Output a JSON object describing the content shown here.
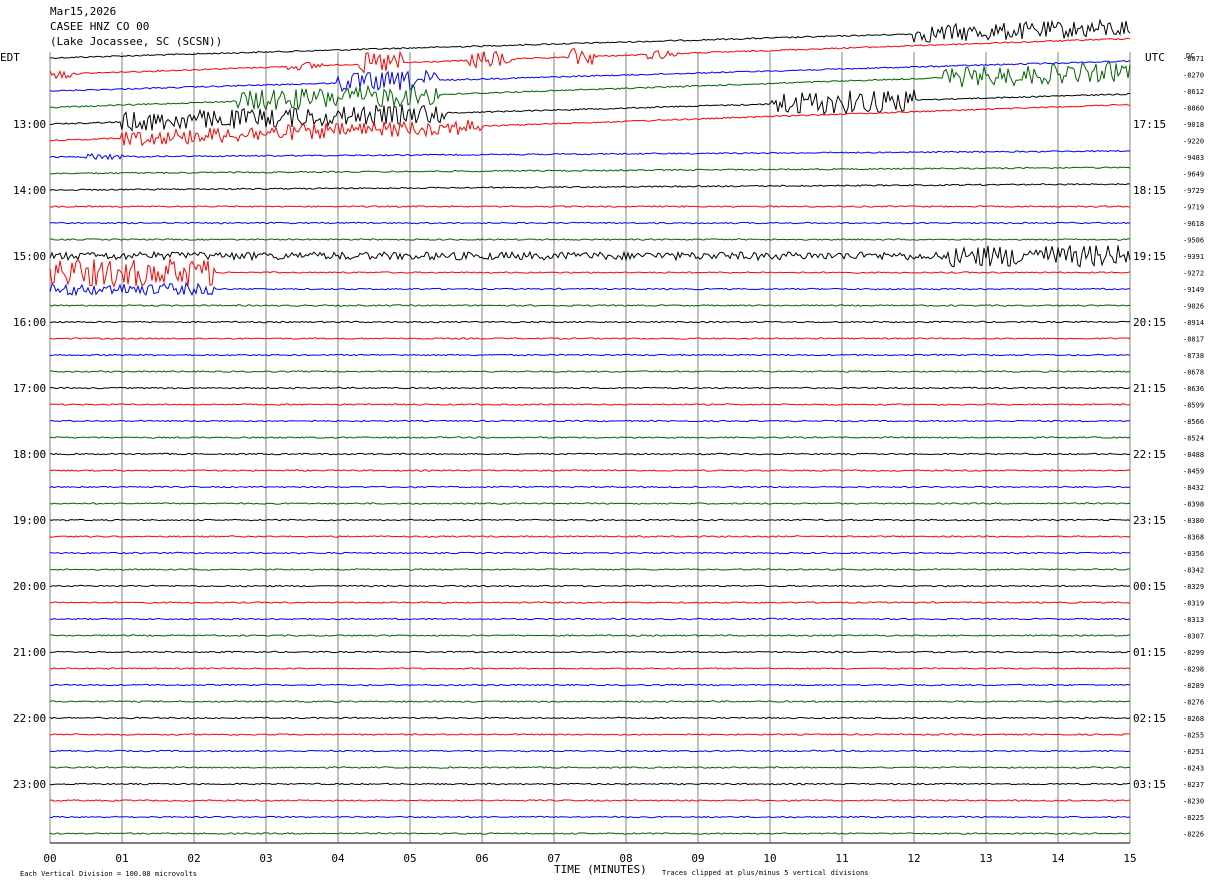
{
  "header": {
    "date": "Mar15,2026",
    "channel": "CASEE HNZ CO 00",
    "location": "(Lake Jocassee, SC (SCSN))"
  },
  "chart_data": {
    "type": "line",
    "subtype": "helicorder",
    "left_zone_label": "EDT",
    "right_zone_label": "UTC",
    "right_top_label": "DC",
    "xlabel": "TIME (MINUTES)",
    "x_ticks": [
      "00",
      "01",
      "02",
      "03",
      "04",
      "05",
      "06",
      "07",
      "08",
      "09",
      "10",
      "11",
      "12",
      "13",
      "14",
      "15"
    ],
    "xlim": [
      0,
      15
    ],
    "left_hour_labels": [
      "13:00",
      "14:00",
      "15:00",
      "16:00",
      "17:00",
      "18:00",
      "19:00",
      "20:00",
      "21:00",
      "22:00",
      "23:00"
    ],
    "right_hour_labels": [
      "17:15",
      "18:15",
      "19:15",
      "20:15",
      "21:15",
      "22:15",
      "23:15",
      "00:15",
      "01:15",
      "02:15",
      "03:15"
    ],
    "trace_colors": [
      "#000000",
      "#ff0000",
      "#0000ff",
      "#006400"
    ],
    "dc_offsets": [
      "-8071",
      "-8270",
      "-8612",
      "-8860",
      "-9018",
      "-9220",
      "-9483",
      "-9649",
      "-9729",
      "-9719",
      "-9618",
      "-9506",
      "-9391",
      "-9272",
      "-9149",
      "-9026",
      "-8914",
      "-8817",
      "-8738",
      "-8678",
      "-8636",
      "-8599",
      "-8566",
      "-8524",
      "-8488",
      "-8459",
      "-8432",
      "-8398",
      "-8380",
      "-8368",
      "-8356",
      "-8342",
      "-8329",
      "-8319",
      "-8313",
      "-8307",
      "-8299",
      "-8298",
      "-8289",
      "-8276",
      "-8268",
      "-8255",
      "-8251",
      "-8243",
      "-8237",
      "-8230",
      "-8225",
      "-8226"
    ],
    "footer_left": "Each Vertical Division =  100.00 microvolts",
    "footer_right": "Traces clipped at plus/minus 5 vertical divisions"
  }
}
